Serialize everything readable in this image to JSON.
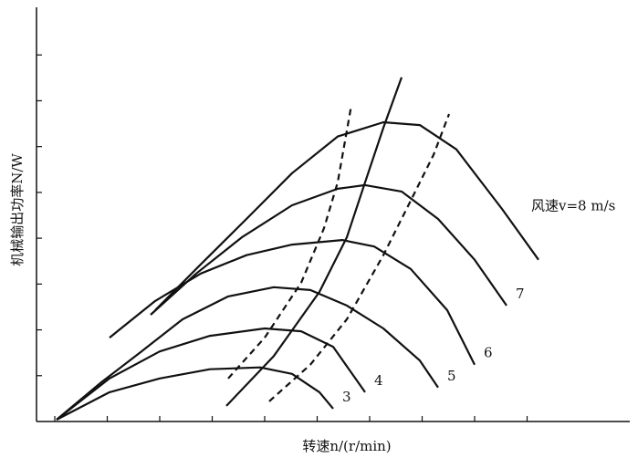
{
  "chart_data": {
    "type": "line",
    "x_label": "转速n/(r/min)",
    "y_label": "机械输出功率N/W",
    "xlim": [
      0,
      130
    ],
    "ylim": [
      0,
      90
    ],
    "xticks": [
      4,
      15.5,
      27,
      38.5,
      50,
      61.5,
      73,
      84.5,
      96,
      107.5
    ],
    "yticks": [
      10,
      20,
      30,
      40,
      50,
      60,
      70,
      80
    ],
    "color": "#111111",
    "series": [
      {
        "name": "3",
        "x": [
          4.4,
          16,
          27,
          38,
          49,
          56,
          62,
          65
        ],
        "values": [
          0.4,
          6.4,
          9.4,
          11.4,
          11.8,
          10.4,
          6.4,
          2.8
        ]
      },
      {
        "name": "4",
        "x": [
          4.4,
          16,
          27,
          38,
          50,
          58,
          65,
          72
        ],
        "values": [
          0.4,
          9.4,
          15.3,
          18.7,
          20.3,
          19.7,
          16.3,
          6.4
        ]
      },
      {
        "name": "5",
        "x": [
          4.4,
          14,
          23,
          32,
          42,
          52,
          60,
          68,
          76,
          84,
          88
        ],
        "values": [
          0.4,
          8.4,
          15.3,
          22.3,
          27.3,
          29.3,
          28.7,
          25.3,
          20.3,
          13.3,
          7.4
        ]
      },
      {
        "name": "6",
        "x": [
          16,
          26,
          36,
          46,
          56,
          67,
          74,
          82,
          90,
          96
        ],
        "values": [
          18.3,
          26.3,
          32.3,
          36.3,
          38.6,
          39.6,
          38.2,
          33.3,
          24.3,
          12.4
        ]
      },
      {
        "name": "7",
        "x": [
          25,
          35,
          45,
          56,
          66,
          72,
          80,
          88,
          96,
          103
        ],
        "values": [
          23.3,
          32.3,
          40.2,
          47.2,
          50.8,
          51.6,
          50.2,
          44.2,
          35.3,
          25.3
        ]
      },
      {
        "name": "风速v=8 m/s",
        "x": [
          26,
          36,
          46,
          56,
          66,
          76,
          84,
          92,
          102,
          110
        ],
        "values": [
          24.3,
          34.3,
          44.2,
          54.2,
          62.2,
          65.3,
          64.7,
          59.4,
          46.4,
          35.3
        ]
      },
      {
        "dashed": true,
        "x": [
          42,
          50,
          58,
          63,
          66,
          69
        ],
        "values": [
          9.4,
          18.3,
          30.3,
          42.2,
          52.2,
          69.1
        ]
      },
      {
        "dashed": false,
        "x": [
          41.6,
          52,
          62,
          68,
          72,
          76,
          80
        ],
        "values": [
          3.4,
          14.3,
          28.3,
          40.2,
          52.2,
          64.1,
          75.1
        ]
      },
      {
        "dashed": true,
        "x": [
          51,
          60,
          68,
          76,
          83,
          87,
          90.4
        ],
        "values": [
          4.4,
          12.4,
          22.3,
          36.3,
          50.2,
          58.2,
          67.1
        ]
      }
    ]
  }
}
